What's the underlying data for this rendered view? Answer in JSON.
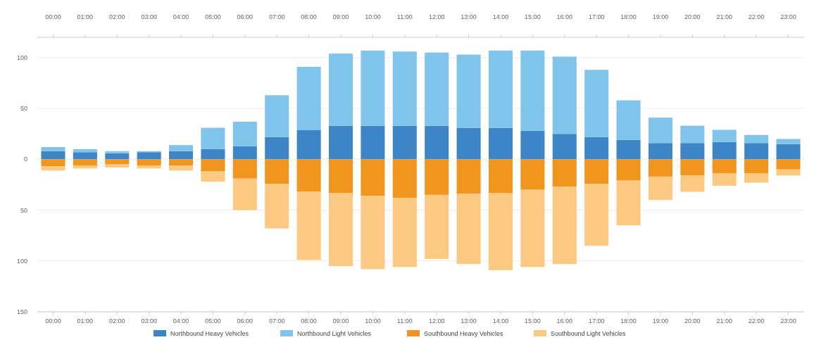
{
  "chart_data": {
    "type": "bar",
    "stacked": true,
    "categories": [
      "00:00",
      "01:00",
      "02:00",
      "03:00",
      "04:00",
      "05:00",
      "06:00",
      "07:00",
      "08:00",
      "09:00",
      "10:00",
      "11:00",
      "12:00",
      "13:00",
      "14:00",
      "15:00",
      "16:00",
      "17:00",
      "18:00",
      "19:00",
      "20:00",
      "21:00",
      "22:00",
      "23:00"
    ],
    "series": [
      {
        "name": "Northbound Heavy Vehicles",
        "color": "#3d85c6",
        "values": [
          8,
          7,
          6,
          7,
          8,
          10,
          13,
          22,
          29,
          33,
          33,
          33,
          33,
          31,
          31,
          28,
          25,
          22,
          19,
          16,
          16,
          17,
          16,
          15
        ]
      },
      {
        "name": "Northbound Light Vehicles",
        "color": "#80c4ec",
        "values": [
          4,
          3,
          2,
          1,
          6,
          21,
          24,
          41,
          62,
          71,
          74,
          73,
          72,
          72,
          76,
          79,
          76,
          66,
          39,
          25,
          17,
          12,
          8,
          5
        ]
      },
      {
        "name": "Southbound Heavy Vehicles",
        "color": "#f0951e",
        "values": [
          -7,
          -6,
          -5,
          -6,
          -6,
          -12,
          -19,
          -24,
          -32,
          -33,
          -36,
          -38,
          -35,
          -34,
          -33,
          -30,
          -27,
          -24,
          -21,
          -17,
          -16,
          -14,
          -14,
          -10
        ]
      },
      {
        "name": "Southbound Light Vehicles",
        "color": "#fcc983",
        "values": [
          -4,
          -3,
          -3,
          -3,
          -5,
          -10,
          -31,
          -44,
          -67,
          -72,
          -72,
          -68,
          -63,
          -69,
          -76,
          -76,
          -76,
          -61,
          -44,
          -23,
          -16,
          -12,
          -9,
          -6
        ]
      }
    ],
    "ylim": [
      -150,
      120
    ],
    "yticks": [
      {
        "value": -150,
        "label": "150"
      },
      {
        "value": -100,
        "label": "100"
      },
      {
        "value": -50,
        "label": "50"
      },
      0,
      50,
      100
    ],
    "grid": "y",
    "legend": "bottom"
  }
}
